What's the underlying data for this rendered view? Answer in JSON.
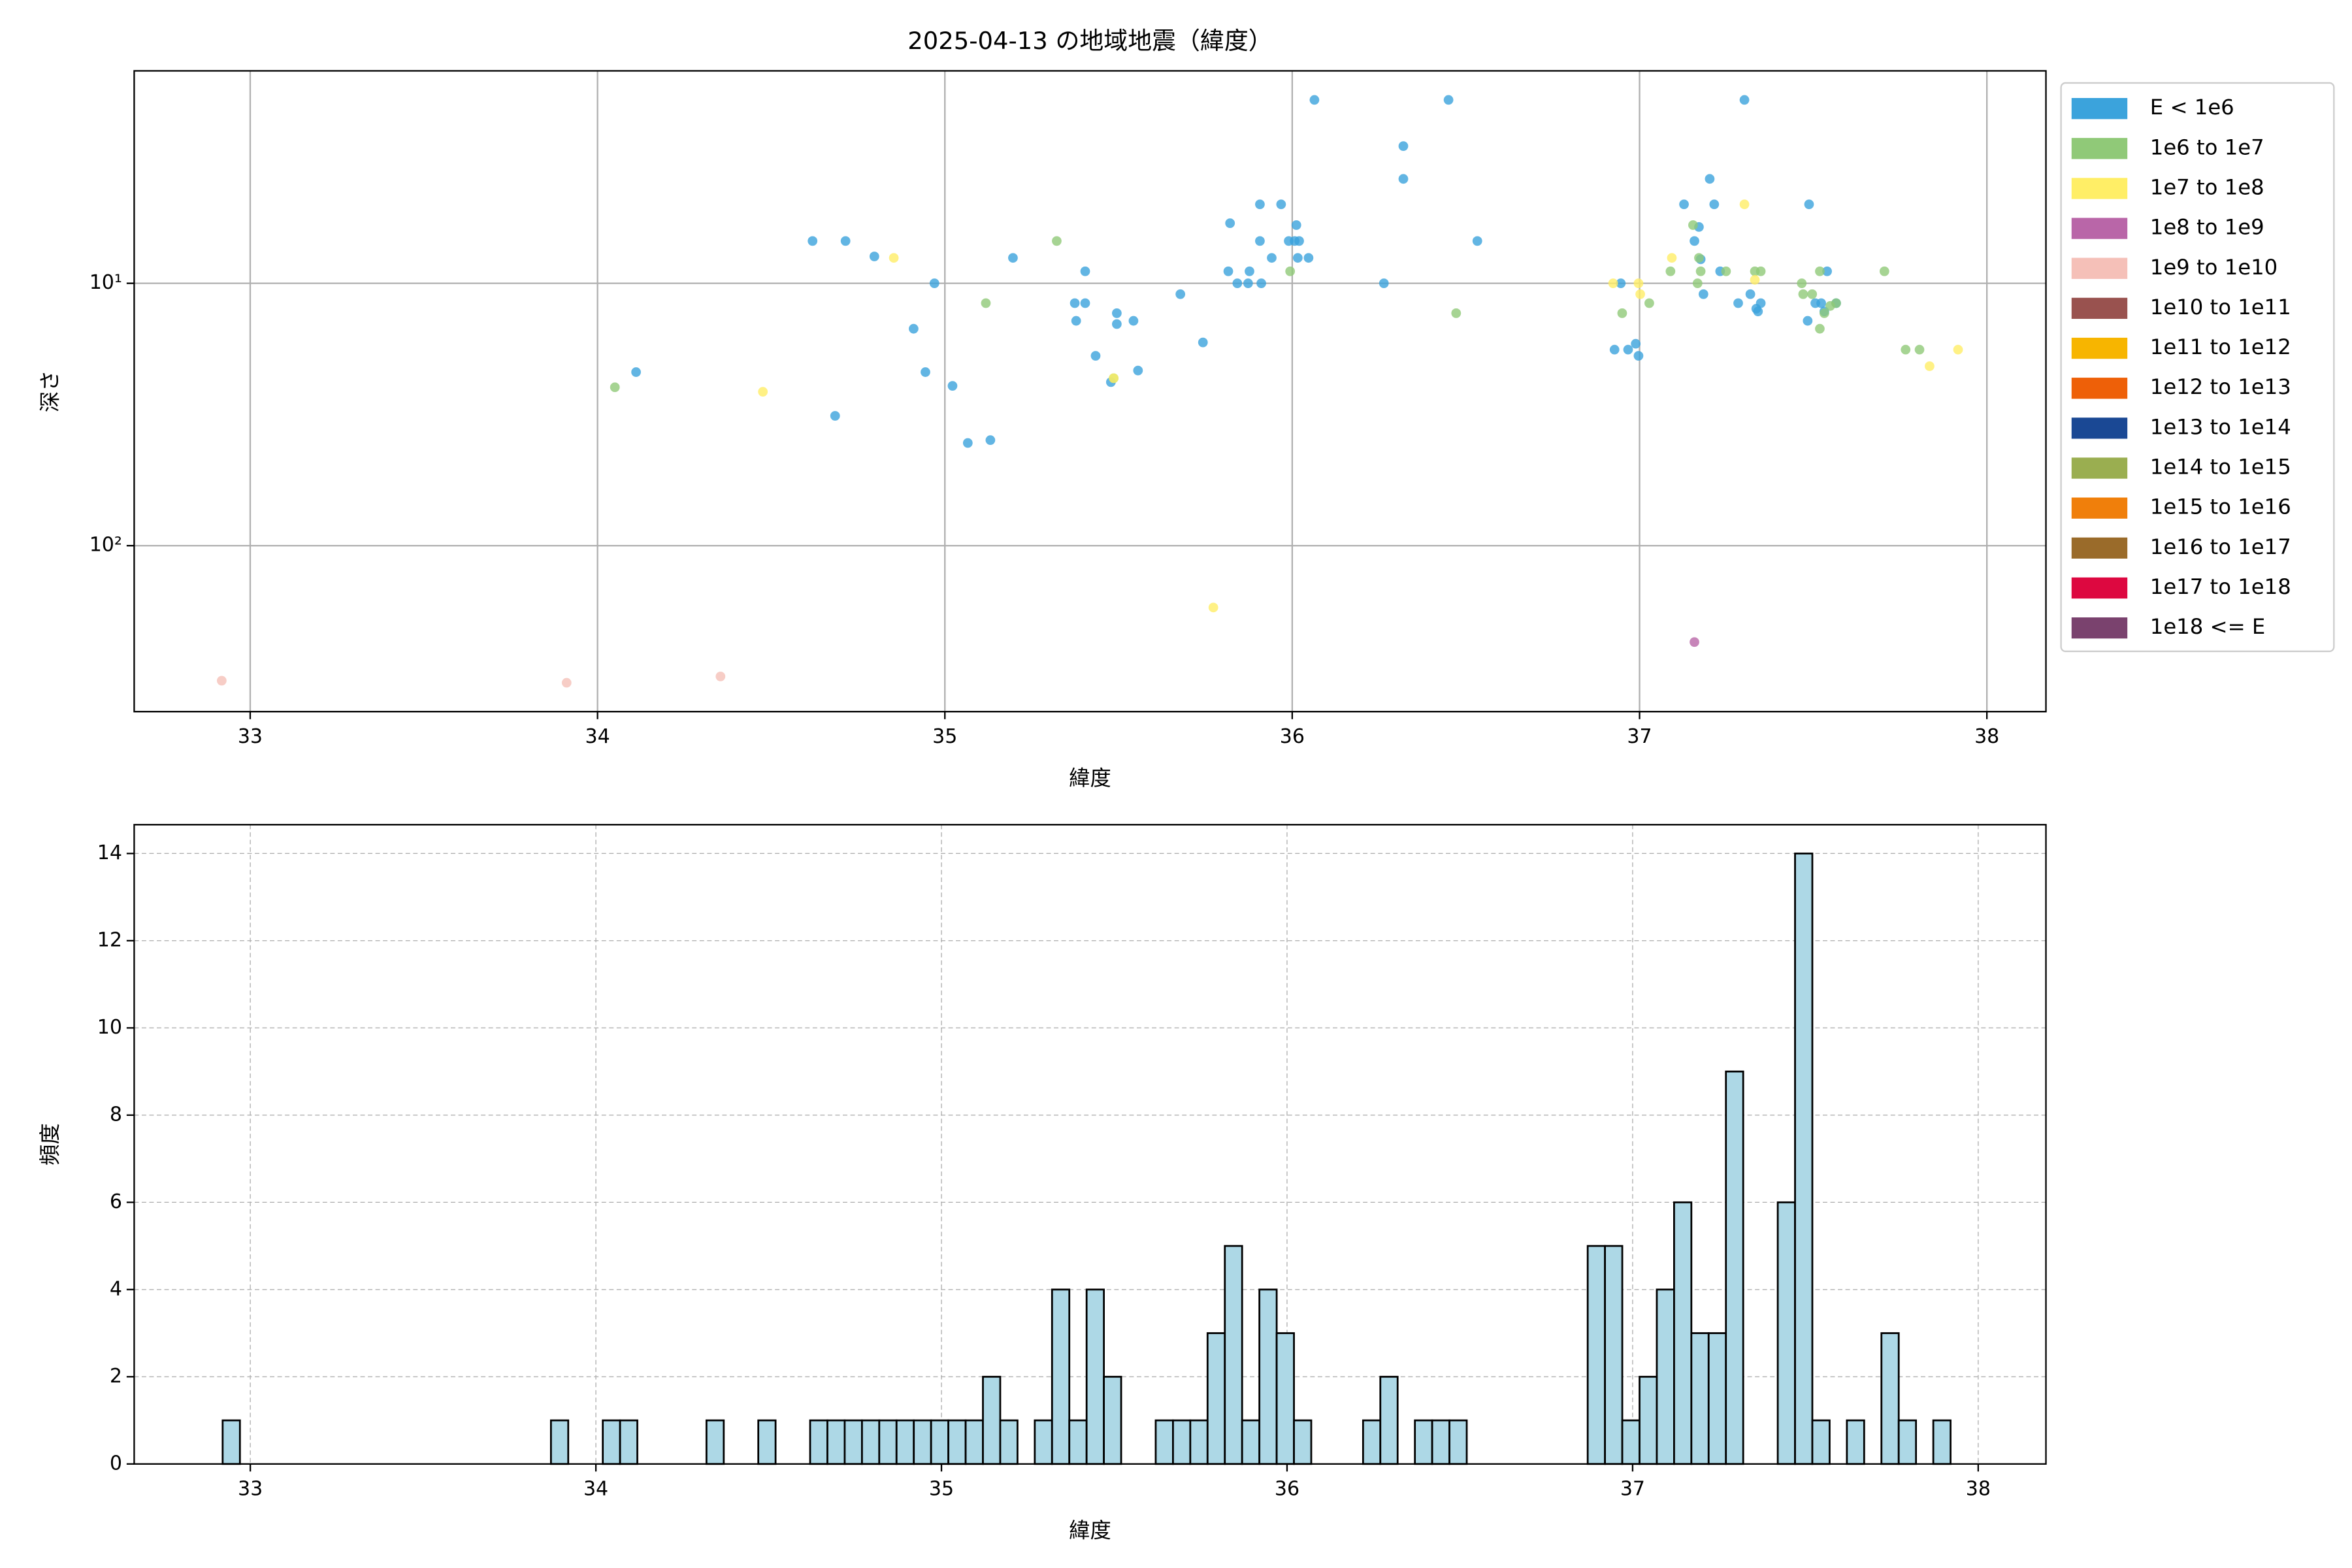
{
  "chart_data": [
    {
      "type": "scatter",
      "title": "2025-04-13 の地域地震（緯度）",
      "xlabel": "緯度",
      "ylabel": "深さ",
      "xlim": [
        32.666,
        38.17
      ],
      "xticks": [
        33,
        34,
        35,
        36,
        37,
        38
      ],
      "ylim": [
        1.55,
        429
      ],
      "yscale": "log",
      "y_inverted": true,
      "yticks": [
        {
          "value": 10,
          "label": "10¹"
        },
        {
          "value": 100,
          "label": "10²"
        }
      ],
      "grid": true,
      "legend": "outside upper right",
      "series": [
        {
          "name": "E < 1e6",
          "color": "#3ba3dc",
          "x": [
            34.619,
            34.714,
            34.797,
            34.111,
            34.684,
            34.97,
            34.91,
            34.944,
            35.022,
            35.066,
            35.131,
            35.196,
            35.374,
            35.378,
            35.404,
            35.404,
            35.434,
            35.495,
            35.478,
            35.556,
            35.495,
            35.543,
            35.678,
            35.743,
            35.816,
            35.821,
            35.842,
            35.873,
            35.877,
            35.907,
            35.907,
            35.911,
            35.941,
            35.968,
            35.99,
            36.007,
            36.012,
            36.02,
            36.016,
            36.047,
            36.064,
            36.264,
            36.32,
            36.32,
            36.45,
            36.533,
            36.928,
            36.946,
            36.967,
            36.997,
            36.989,
            37.128,
            37.158,
            37.171,
            37.176,
            37.184,
            37.202,
            37.215,
            37.232,
            37.284,
            37.302,
            37.319,
            37.336,
            37.341,
            37.349,
            37.484,
            37.488,
            37.506,
            37.523,
            37.54,
            37.566,
            37.532
          ],
          "y": [
            6.9,
            6.9,
            7.9,
            21.8,
            32,
            10,
            14.9,
            21.8,
            24.6,
            40.6,
            39.6,
            8.0,
            11.9,
            13.9,
            9.0,
            11.9,
            18.9,
            13.0,
            23.8,
            21.5,
            14.3,
            13.9,
            11.0,
            16.8,
            9.0,
            5.9,
            10,
            10,
            9.0,
            5.0,
            6.9,
            10,
            8.0,
            5.0,
            6.9,
            6.9,
            6.0,
            6.9,
            8.0,
            8.0,
            2.0,
            10,
            4.0,
            3.0,
            2.0,
            6.9,
            17.9,
            10,
            17.9,
            18.9,
            17.0,
            5.0,
            6.9,
            6.1,
            8.1,
            11.0,
            4.0,
            5.0,
            9.0,
            11.9,
            2.0,
            11.0,
            12.5,
            12.8,
            11.9,
            13.9,
            5.0,
            11.9,
            11.9,
            9.0,
            11.9,
            12.8
          ]
        },
        {
          "name": "1e6 to 1e7",
          "color": "#90c978",
          "x": [
            34.05,
            35.118,
            35.322,
            35.486,
            35.994,
            36.472,
            36.95,
            37.028,
            37.089,
            37.154,
            37.171,
            37.176,
            37.167,
            37.249,
            37.332,
            37.349,
            37.467,
            37.471,
            37.497,
            37.519,
            37.519,
            37.532,
            37.549,
            37.566,
            37.705,
            37.766,
            37.806
          ],
          "y": [
            24.9,
            11.9,
            6.9,
            23.0,
            9.0,
            13.0,
            13.0,
            11.9,
            9.0,
            6.0,
            8.0,
            9.0,
            10,
            9.0,
            9.0,
            9.0,
            10,
            11.0,
            11.0,
            9.0,
            14.9,
            13.0,
            12.2,
            11.9,
            9.0,
            17.9,
            17.9
          ]
        },
        {
          "name": "1e7 to 1e8",
          "color": "#ffee66",
          "x": [
            34.853,
            34.476,
            35.486,
            35.773,
            36.924,
            36.997,
            37.002,
            37.093,
            37.302,
            37.332,
            37.835,
            37.917
          ],
          "y": [
            8.0,
            25.9,
            23.0,
            172,
            10,
            10,
            11.0,
            8.0,
            5.0,
            9.7,
            20.7,
            17.9
          ]
        },
        {
          "name": "1e8 to 1e9",
          "color": "#b966a8",
          "x": [
            37.158
          ],
          "y": [
            233
          ]
        },
        {
          "name": "1e9 to 1e10",
          "color": "#f5c0b8",
          "x": [
            32.918,
            33.911,
            34.354
          ],
          "y": [
            327,
            333,
            315
          ]
        },
        {
          "name": "1e10 to 1e11",
          "color": "#99524f",
          "x": [],
          "y": []
        },
        {
          "name": "1e11 to 1e12",
          "color": "#f7b500",
          "x": [],
          "y": []
        },
        {
          "name": "1e12 to 1e13",
          "color": "#ee6008",
          "x": [],
          "y": []
        },
        {
          "name": "1e13 to 1e14",
          "color": "#1a4894",
          "x": [],
          "y": []
        },
        {
          "name": "1e14 to 1e15",
          "color": "#9aae50",
          "x": [],
          "y": []
        },
        {
          "name": "1e15 to 1e16",
          "color": "#f07f0b",
          "x": [],
          "y": []
        },
        {
          "name": "1e16 to 1e17",
          "color": "#9a6b2a",
          "x": [],
          "y": []
        },
        {
          "name": "1e17 to 1e18",
          "color": "#dd0840",
          "x": [],
          "y": []
        },
        {
          "name": "1e18 <= E",
          "color": "#7a426e",
          "x": [],
          "y": []
        }
      ]
    },
    {
      "type": "histogram",
      "xlabel": "緯度",
      "ylabel": "頻度",
      "color": "#add8e6",
      "edgecolor": "#000000",
      "xlim": [
        32.664,
        38.196
      ],
      "xticks": [
        33,
        34,
        35,
        36,
        37,
        38
      ],
      "ylim": [
        0,
        14.66
      ],
      "yticks": [
        0,
        2,
        4,
        6,
        8,
        10,
        12,
        14
      ],
      "grid": true,
      "grid_style": "dashed",
      "bins": [
        32.92,
        32.97,
        33.02,
        33.07,
        33.12,
        33.17,
        33.22,
        33.27,
        33.32,
        33.37,
        33.42,
        33.47,
        33.52,
        33.57,
        33.62,
        33.67,
        33.72,
        33.77,
        33.82,
        33.87,
        33.92,
        33.97,
        34.02,
        34.07,
        34.12,
        34.17,
        34.22,
        34.27,
        34.32,
        34.37,
        34.42,
        34.47,
        34.52,
        34.57,
        34.62,
        34.67,
        34.72,
        34.77,
        34.82,
        34.87,
        34.92,
        34.97,
        35.02,
        35.07,
        35.12,
        35.17,
        35.22,
        35.27,
        35.32,
        35.37,
        35.42,
        35.47,
        35.52,
        35.57,
        35.62,
        35.67,
        35.72,
        35.77,
        35.82,
        35.87,
        35.92,
        35.97,
        36.02,
        36.07,
        36.12,
        36.17,
        36.22,
        36.27,
        36.32,
        36.37,
        36.42,
        36.47,
        36.52,
        36.57,
        36.62,
        36.67,
        36.72,
        36.77,
        36.82,
        36.87,
        36.92,
        36.97,
        37.02,
        37.07,
        37.12,
        37.17,
        37.22,
        37.27,
        37.32,
        37.37,
        37.42,
        37.47,
        37.52,
        37.57,
        37.62,
        37.67,
        37.72,
        37.77,
        37.82,
        37.87,
        37.92
      ],
      "values": [
        1,
        0,
        0,
        0,
        0,
        0,
        0,
        0,
        0,
        0,
        0,
        0,
        0,
        0,
        0,
        0,
        0,
        0,
        0,
        1,
        0,
        0,
        1,
        1,
        0,
        0,
        0,
        0,
        1,
        0,
        0,
        1,
        0,
        0,
        1,
        1,
        1,
        1,
        1,
        1,
        1,
        1,
        1,
        1,
        2,
        1,
        0,
        1,
        4,
        1,
        4,
        2,
        0,
        0,
        1,
        1,
        1,
        3,
        5,
        1,
        4,
        3,
        1,
        0,
        0,
        0,
        1,
        2,
        0,
        1,
        1,
        1,
        0,
        0,
        0,
        0,
        0,
        0,
        0,
        5,
        5,
        1,
        2,
        4,
        6,
        3,
        3,
        9,
        0,
        0,
        6,
        14,
        1,
        0,
        1,
        0,
        3,
        1,
        0,
        1
      ]
    }
  ]
}
